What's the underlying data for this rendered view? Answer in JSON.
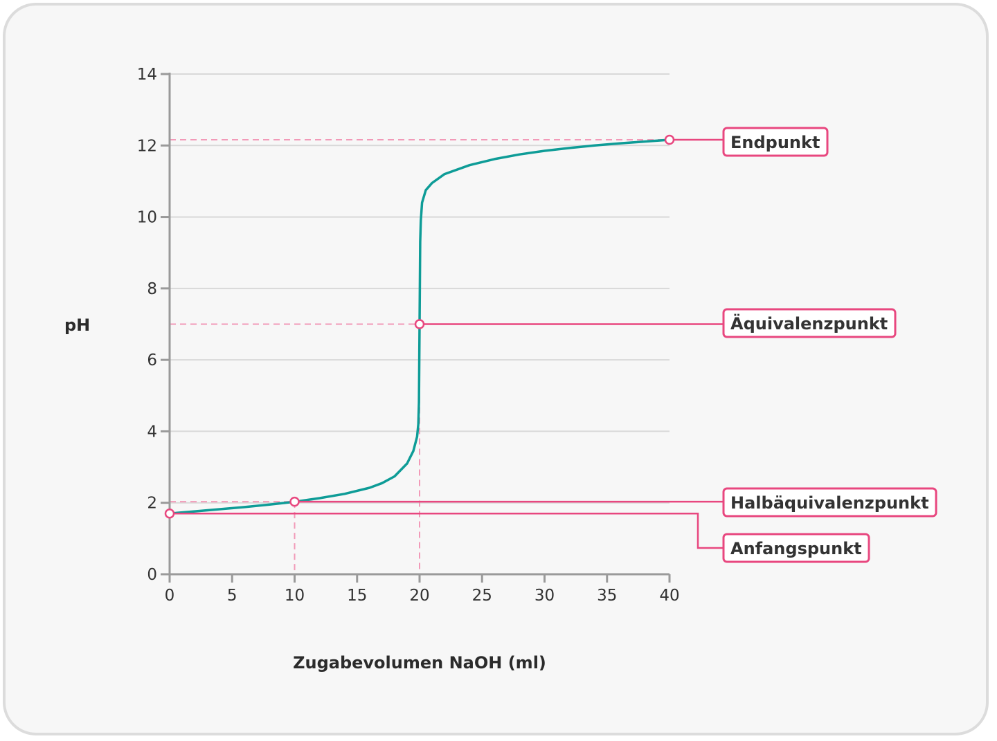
{
  "chart_data": {
    "type": "line",
    "xlabel": "Zugabevolumen NaOH (ml)",
    "ylabel": "pH",
    "xlim": [
      0,
      40
    ],
    "ylim": [
      0,
      14
    ],
    "x_ticks": [
      0,
      5,
      10,
      15,
      20,
      25,
      30,
      35,
      40
    ],
    "y_ticks": [
      0,
      2,
      4,
      6,
      8,
      10,
      12,
      14
    ],
    "grid": "horizontal",
    "series": [
      {
        "color": "#0e9c97",
        "points": [
          [
            0,
            1.7
          ],
          [
            2,
            1.76
          ],
          [
            4,
            1.82
          ],
          [
            6,
            1.88
          ],
          [
            8,
            1.95
          ],
          [
            10,
            2.03
          ],
          [
            12,
            2.13
          ],
          [
            14,
            2.25
          ],
          [
            16,
            2.42
          ],
          [
            17,
            2.55
          ],
          [
            18,
            2.74
          ],
          [
            19,
            3.1
          ],
          [
            19.5,
            3.45
          ],
          [
            19.8,
            3.85
          ],
          [
            19.9,
            4.2
          ],
          [
            19.95,
            4.8
          ],
          [
            20.0,
            7.0
          ],
          [
            20.05,
            9.3
          ],
          [
            20.1,
            9.9
          ],
          [
            20.2,
            10.4
          ],
          [
            20.5,
            10.75
          ],
          [
            21,
            10.95
          ],
          [
            22,
            11.2
          ],
          [
            24,
            11.45
          ],
          [
            26,
            11.62
          ],
          [
            28,
            11.75
          ],
          [
            30,
            11.85
          ],
          [
            32,
            11.93
          ],
          [
            34,
            12.0
          ],
          [
            36,
            12.06
          ],
          [
            38,
            12.11
          ],
          [
            40,
            12.16
          ]
        ]
      }
    ],
    "annotations": [
      {
        "label": "Endpunkt",
        "x": 40,
        "y": 12.16
      },
      {
        "label": "Äquivalenzpunkt",
        "x": 20,
        "y": 7.0
      },
      {
        "label": "Halbäquivalenzpunkt",
        "x": 10,
        "y": 2.03
      },
      {
        "label": "Anfangspunkt",
        "x": 0,
        "y": 1.7
      }
    ],
    "colors": {
      "curve": "#0e9c97",
      "highlight": "#e8477f",
      "guide": "#f29ab8",
      "grid": "#d9d9d9",
      "axis": "#9a9a9a"
    }
  }
}
